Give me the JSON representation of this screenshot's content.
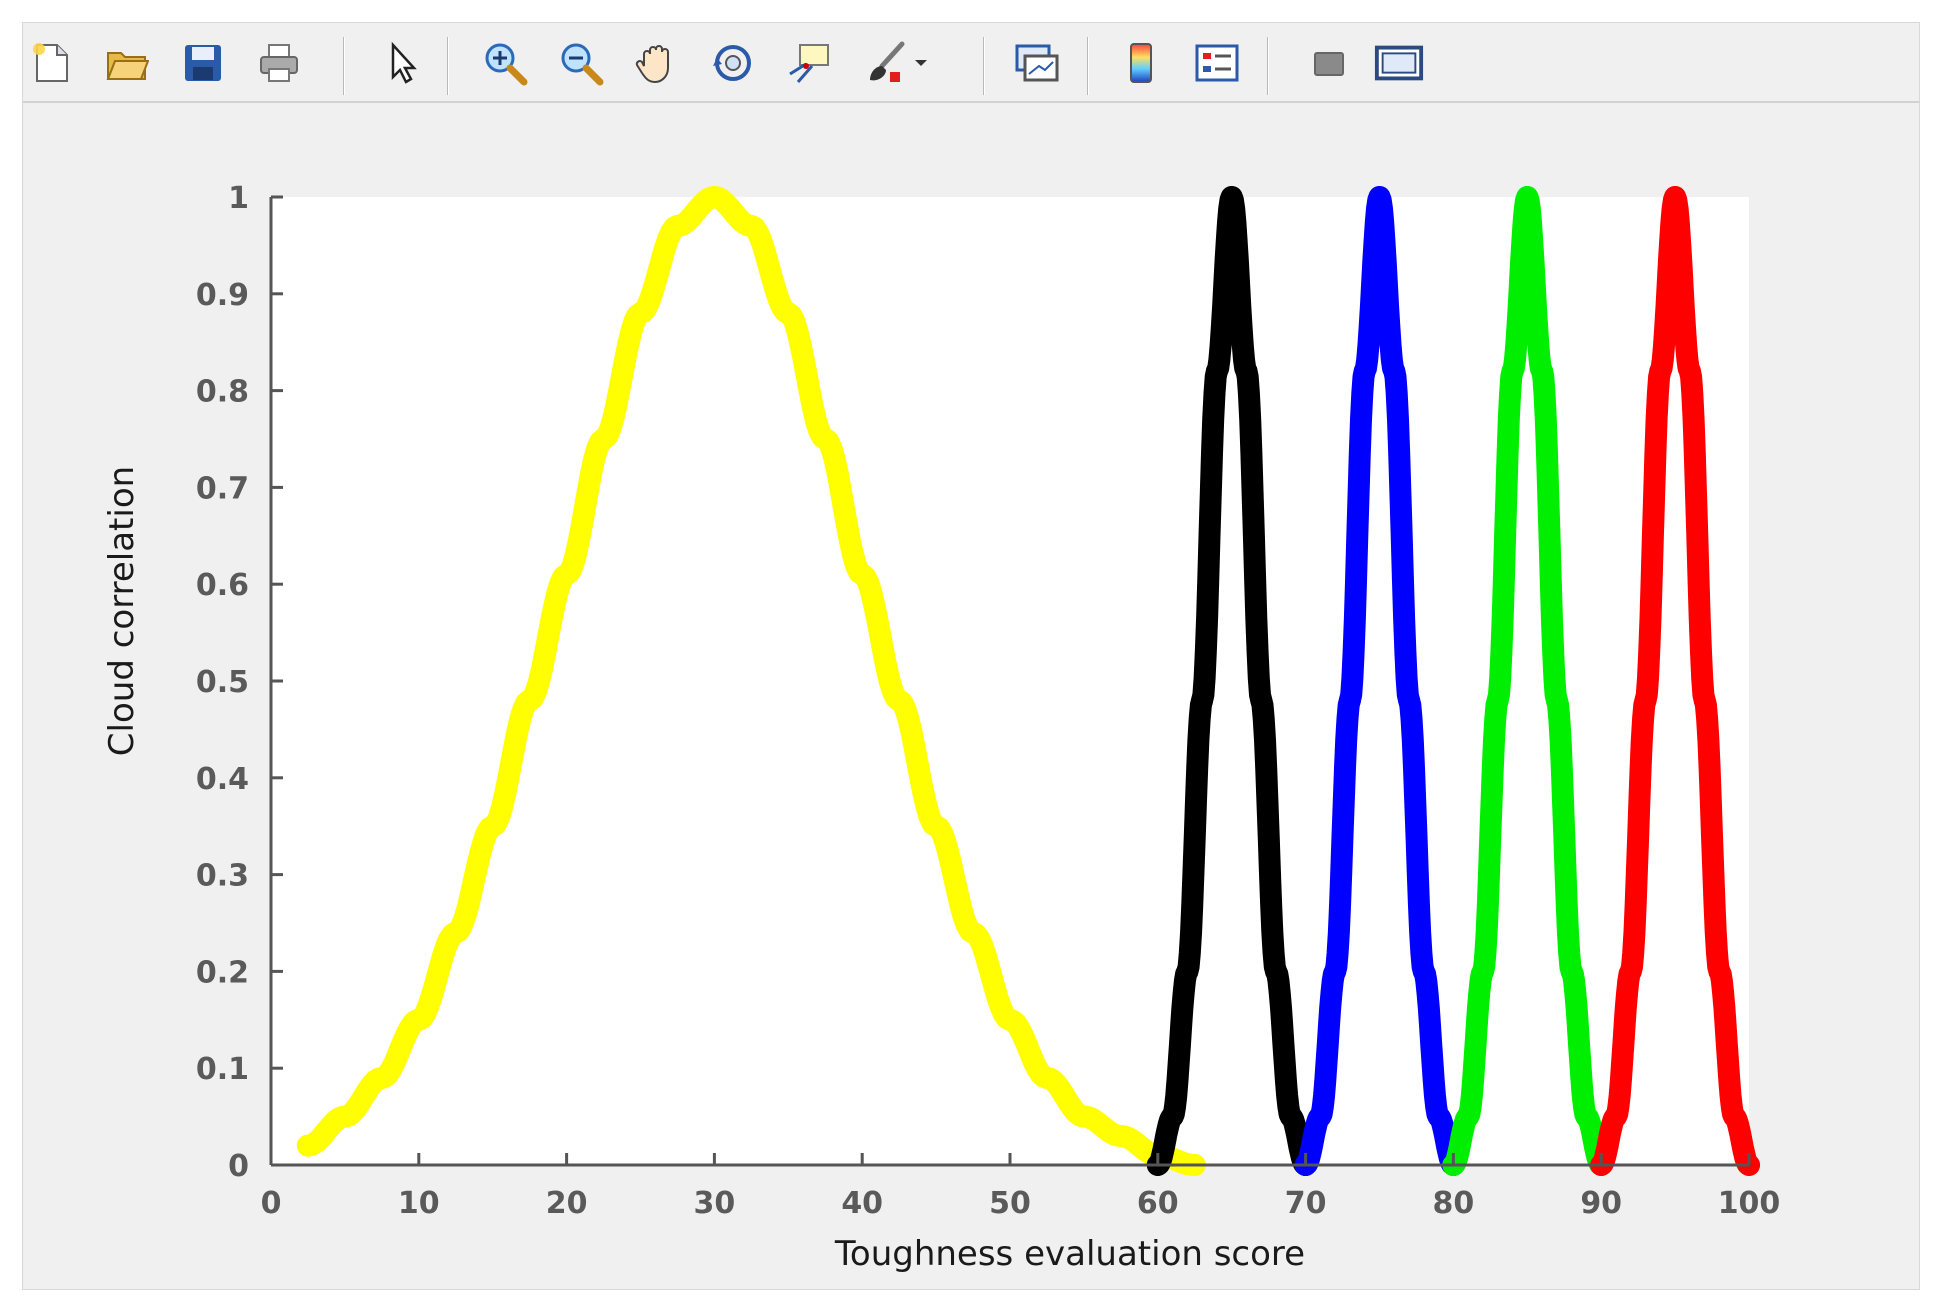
{
  "toolbar": {
    "buttons": [
      {
        "icon": "new-figure-icon"
      },
      {
        "icon": "open-file-icon"
      },
      {
        "icon": "save-icon"
      },
      {
        "icon": "print-icon"
      },
      {
        "icon": "edit-plot-arrow-icon"
      },
      {
        "icon": "zoom-in-icon"
      },
      {
        "icon": "zoom-out-icon"
      },
      {
        "icon": "pan-hand-icon"
      },
      {
        "icon": "rotate-3d-icon"
      },
      {
        "icon": "data-cursor-icon"
      },
      {
        "icon": "brush-icon"
      },
      {
        "icon": "brush-dropdown-icon"
      },
      {
        "icon": "link-plot-icon"
      },
      {
        "icon": "insert-colorbar-icon"
      },
      {
        "icon": "insert-legend-icon"
      },
      {
        "icon": "hide-plot-tools-icon"
      },
      {
        "icon": "show-plot-tools-icon"
      }
    ]
  },
  "chart_data": {
    "type": "scatter",
    "title": "",
    "xlabel": "Toughness evaluation score",
    "ylabel": "Cloud correlation",
    "xlim": [
      0,
      100
    ],
    "ylim": [
      0,
      1
    ],
    "xticks": [
      "0",
      "10",
      "20",
      "30",
      "40",
      "50",
      "60",
      "70",
      "80",
      "90",
      "100"
    ],
    "yticks": [
      "0",
      "0.1",
      "0.2",
      "0.3",
      "0.4",
      "0.5",
      "0.6",
      "0.7",
      "0.8",
      "0.9",
      "1"
    ],
    "grid": false,
    "legend": "none",
    "series": [
      {
        "color": "#ffff00",
        "x": [
          2.5,
          5,
          7.5,
          10,
          12.5,
          15,
          17.5,
          20,
          22.5,
          25,
          27.5,
          30,
          32.5,
          35,
          37.5,
          40,
          42.5,
          45,
          47.5,
          50,
          52.5,
          55,
          57.5,
          60,
          62.5
        ],
        "values": [
          0.02,
          0.05,
          0.09,
          0.15,
          0.24,
          0.35,
          0.48,
          0.61,
          0.75,
          0.88,
          0.97,
          1.0,
          0.97,
          0.88,
          0.75,
          0.61,
          0.48,
          0.35,
          0.24,
          0.15,
          0.09,
          0.05,
          0.03,
          0.01,
          0.0
        ]
      },
      {
        "color": "#000000",
        "x": [
          60,
          61,
          62,
          63,
          64,
          65,
          66,
          67,
          68,
          69,
          70
        ],
        "values": [
          0.0,
          0.05,
          0.2,
          0.48,
          0.82,
          1.0,
          0.82,
          0.48,
          0.2,
          0.05,
          0.0
        ]
      },
      {
        "color": "#0000ff",
        "x": [
          70,
          71,
          72,
          73,
          74,
          75,
          76,
          77,
          78,
          79,
          80
        ],
        "values": [
          0.0,
          0.05,
          0.2,
          0.48,
          0.82,
          1.0,
          0.82,
          0.48,
          0.2,
          0.05,
          0.0
        ]
      },
      {
        "color": "#00ee00",
        "x": [
          80,
          81,
          82,
          83,
          84,
          85,
          86,
          87,
          88,
          89,
          90
        ],
        "values": [
          0.0,
          0.05,
          0.2,
          0.48,
          0.82,
          1.0,
          0.82,
          0.48,
          0.2,
          0.05,
          0.0
        ]
      },
      {
        "color": "#ff0000",
        "x": [
          90,
          91,
          92,
          93,
          94,
          95,
          96,
          97,
          98,
          99,
          100
        ],
        "values": [
          0.0,
          0.05,
          0.2,
          0.48,
          0.82,
          1.0,
          0.82,
          0.48,
          0.2,
          0.05,
          0.0
        ]
      }
    ]
  }
}
